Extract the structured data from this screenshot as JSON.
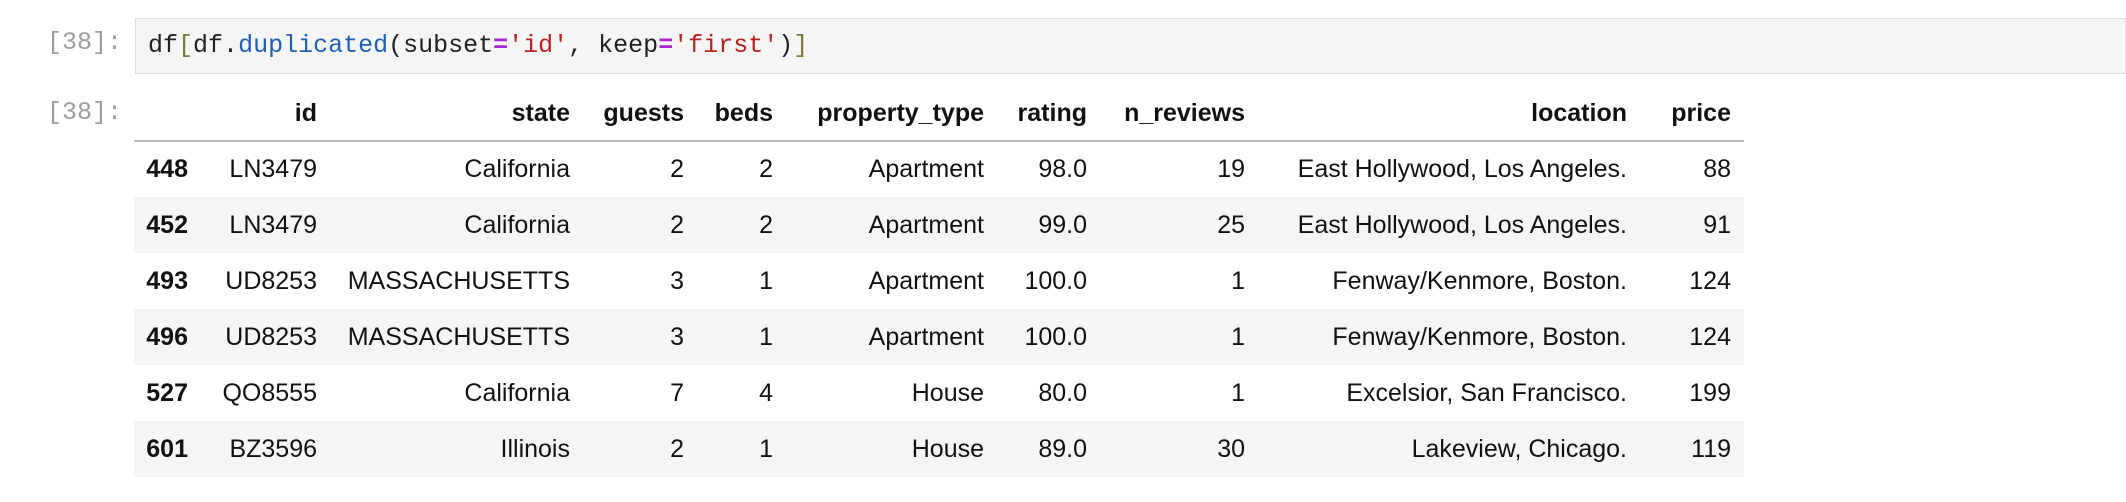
{
  "input_prompt": "[38]:",
  "output_prompt": "[38]:",
  "code_tokens": [
    "df",
    "[",
    "df",
    ".",
    "duplicated",
    "(",
    "subset",
    "=",
    "'id'",
    ", ",
    "keep",
    "=",
    "'first'",
    ")",
    "]"
  ],
  "table": {
    "columns": [
      "",
      "id",
      "state",
      "guests",
      "beds",
      "property_type",
      "rating",
      "n_reviews",
      "location",
      "price"
    ],
    "rows": [
      [
        "448",
        "LN3479",
        "California",
        "2",
        "2",
        "Apartment",
        "98.0",
        "19",
        "East Hollywood, Los Angeles.",
        "88"
      ],
      [
        "452",
        "LN3479",
        "California",
        "2",
        "2",
        "Apartment",
        "99.0",
        "25",
        "East Hollywood, Los Angeles.",
        "91"
      ],
      [
        "493",
        "UD8253",
        "MASSACHUSETTS",
        "3",
        "1",
        "Apartment",
        "100.0",
        "1",
        "Fenway/Kenmore, Boston.",
        "124"
      ],
      [
        "496",
        "UD8253",
        "MASSACHUSETTS",
        "3",
        "1",
        "Apartment",
        "100.0",
        "1",
        "Fenway/Kenmore, Boston.",
        "124"
      ],
      [
        "527",
        "QO8555",
        "California",
        "7",
        "4",
        "House",
        "80.0",
        "1",
        "Excelsior, San Francisco.",
        "199"
      ],
      [
        "601",
        "BZ3596",
        "Illinois",
        "2",
        "1",
        "House",
        "89.0",
        "30",
        "Lakeview, Chicago.",
        "119"
      ]
    ]
  }
}
